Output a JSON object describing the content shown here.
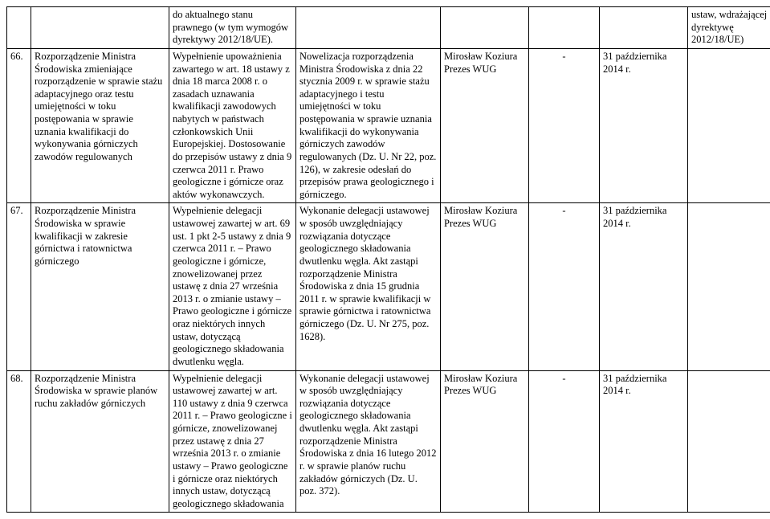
{
  "row0": {
    "c2": "do aktualnego stanu prawnego (w tym wymogów dyrektywy 2012/18/UE).",
    "c7": "ustaw, wdrażającej dyrektywę 2012/18/UE)"
  },
  "row66": {
    "num": "66.",
    "c1": "Rozporządzenie Ministra Środowiska zmieniające rozporządzenie w sprawie stażu adaptacyjnego oraz testu umiejętności w toku postępowania w sprawie uznania kwalifikacji do wykonywania górniczych zawodów regulowanych",
    "c2": "Wypełnienie upoważnienia zawartego w art. 18 ustawy z dnia 18 marca 2008 r. o zasadach uznawania kwalifikacji zawodowych nabytych w państwach członkowskich Unii Europejskiej. Dostosowanie do przepisów ustawy z dnia 9 czerwca 2011 r. Prawo geologiczne i górnicze oraz aktów wykonawczych.",
    "c3": "Nowelizacja rozporządzenia Ministra Środowiska z dnia 22 stycznia 2009 r. w sprawie stażu adaptacyjnego i testu umiejętności w toku postępowania w sprawie uznania kwalifikacji do wykonywania górniczych zawodów regulowanych (Dz. U. Nr 22, poz. 126), w zakresie odesłań do przepisów prawa geologicznego i górniczego.",
    "c4": "Mirosław Koziura Prezes WUG",
    "c5": "-",
    "c6": "31 października 2014 r."
  },
  "row67": {
    "num": "67.",
    "c1": "Rozporządzenie Ministra Środowiska w sprawie kwalifikacji w zakresie górnictwa i ratownictwa górniczego",
    "c2": "Wypełnienie delegacji ustawowej zawartej w art. 69 ust. 1 pkt 2-5 ustawy z dnia 9 czerwca 2011 r. – Prawo geologiczne i górnicze, znowelizowanej przez ustawę z dnia 27 września 2013 r. o zmianie ustawy – Prawo geologiczne i górnicze oraz niektórych innych ustaw, dotyczącą geologicznego składowania dwutlenku węgla.",
    "c3": "Wykonanie delegacji ustawowej w sposób uwzględniający rozwiązania dotyczące geologicznego składowania dwutlenku węgla. Akt zastąpi rozporządzenie Ministra Środowiska z dnia 15 grudnia 2011 r. w sprawie kwalifikacji w sprawie górnictwa i ratownictwa górniczego (Dz. U. Nr 275, poz. 1628).",
    "c4": "Mirosław Koziura Prezes WUG",
    "c5": "-",
    "c6": "31 października 2014 r."
  },
  "row68": {
    "num": "68.",
    "c1": "Rozporządzenie Ministra Środowiska w sprawie planów ruchu zakładów górniczych",
    "c2": "Wypełnienie delegacji ustawowej zawartej w art. 110 ustawy z dnia 9 czerwca 2011 r. – Prawo geologiczne i górnicze, znowelizowanej przez ustawę z dnia 27 września 2013 r. o zmianie ustawy – Prawo geologiczne i górnicze oraz niektórych innych ustaw, dotyczącą geologicznego składowania",
    "c3": "Wykonanie delegacji ustawowej w sposób uwzględniający rozwiązania dotyczące geologicznego składowania dwutlenku węgla. Akt zastąpi rozporządzenie Ministra Środowiska z dnia 16 lutego 2012 r. w sprawie planów ruchu zakładów górniczych (Dz. U. poz. 372).",
    "c4": "Mirosław Koziura Prezes WUG",
    "c5": "-",
    "c6": "31 października 2014 r."
  }
}
